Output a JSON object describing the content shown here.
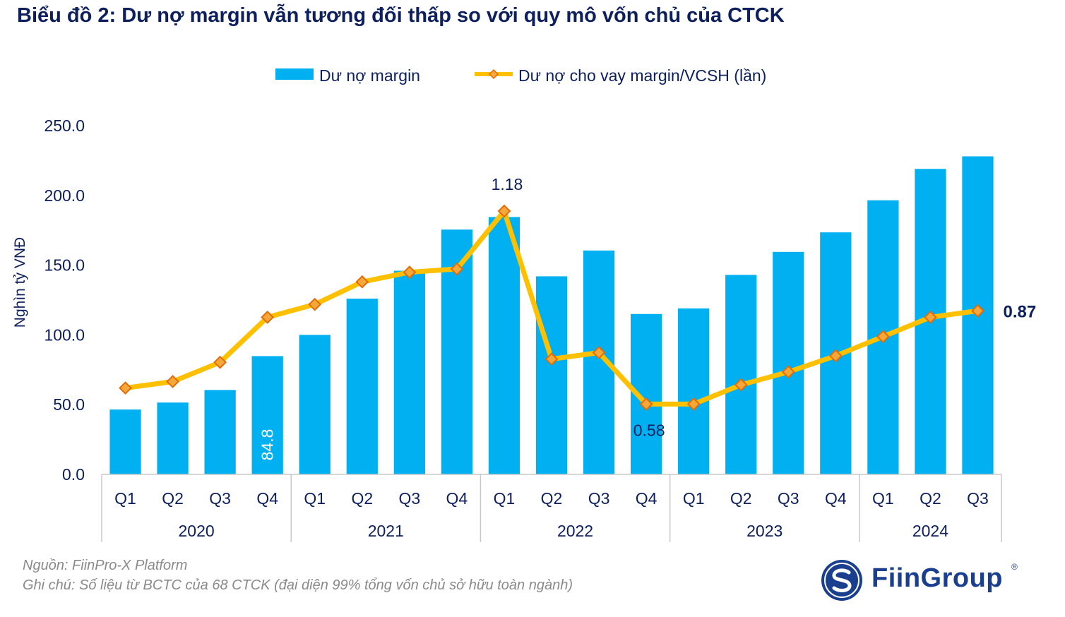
{
  "title": "Biểu đồ 2: Dư nợ margin vẫn tương đối thấp so với quy mô vốn chủ của CTCK",
  "footer": {
    "source": "Nguồn: FiinPro-X Platform",
    "note": "Ghi chú: Số liệu từ BCTC của 68 CTCK (đại diện 99% tổng vốn chủ sở hữu toàn ngành)"
  },
  "logo": {
    "name": "FiinGroup",
    "reg": "®"
  },
  "colors": {
    "bar": "#00b0f0",
    "line": "#ffc000",
    "marker": "#f4a83a",
    "marker_stroke": "#e36c09",
    "text": "#0d1f5c",
    "axis": "#c8c8c8"
  },
  "chart_data": {
    "type": "bar",
    "title": "Biểu đồ 2: Dư nợ margin vẫn tương đối thấp so với quy mô vốn chủ của CTCK",
    "ylabel": "Nghìn tỷ VNĐ",
    "ylim": [
      0,
      250
    ],
    "yticks": [
      "0.0",
      "50.0",
      "100.0",
      "150.0",
      "200.0",
      "250.0"
    ],
    "categories": [
      "Q1",
      "Q2",
      "Q3",
      "Q4",
      "Q1",
      "Q2",
      "Q3",
      "Q4",
      "Q1",
      "Q2",
      "Q3",
      "Q4",
      "Q1",
      "Q2",
      "Q3",
      "Q4",
      "Q1",
      "Q2",
      "Q3"
    ],
    "year_groups": [
      {
        "label": "2020",
        "count": 4
      },
      {
        "label": "2021",
        "count": 4
      },
      {
        "label": "2022",
        "count": 4
      },
      {
        "label": "2023",
        "count": 4
      },
      {
        "label": "2024",
        "count": 3
      }
    ],
    "series": [
      {
        "name": "Dư nợ margin",
        "type": "bar",
        "values": [
          46.5,
          51.5,
          60.5,
          84.8,
          100.0,
          126.0,
          146.0,
          175.5,
          184.5,
          142.0,
          160.5,
          115.0,
          119.0,
          143.0,
          159.5,
          173.5,
          196.5,
          219.0,
          228.0
        ]
      },
      {
        "name": "Dư nợ cho vay margin/VCSH (lần)",
        "type": "line",
        "values": [
          0.63,
          0.65,
          0.71,
          0.85,
          0.89,
          0.96,
          0.99,
          1.0,
          1.18,
          0.72,
          0.74,
          0.58,
          0.58,
          0.64,
          0.68,
          0.73,
          0.79,
          0.85,
          0.87
        ]
      }
    ],
    "bar_labels": [
      {
        "index": 3,
        "text": "84.8"
      }
    ],
    "line_labels": [
      {
        "index": 8,
        "text": "1.18"
      },
      {
        "index": 11,
        "text": "0.58"
      },
      {
        "index": 18,
        "text": "0.87"
      }
    ],
    "legend": "top-center"
  }
}
